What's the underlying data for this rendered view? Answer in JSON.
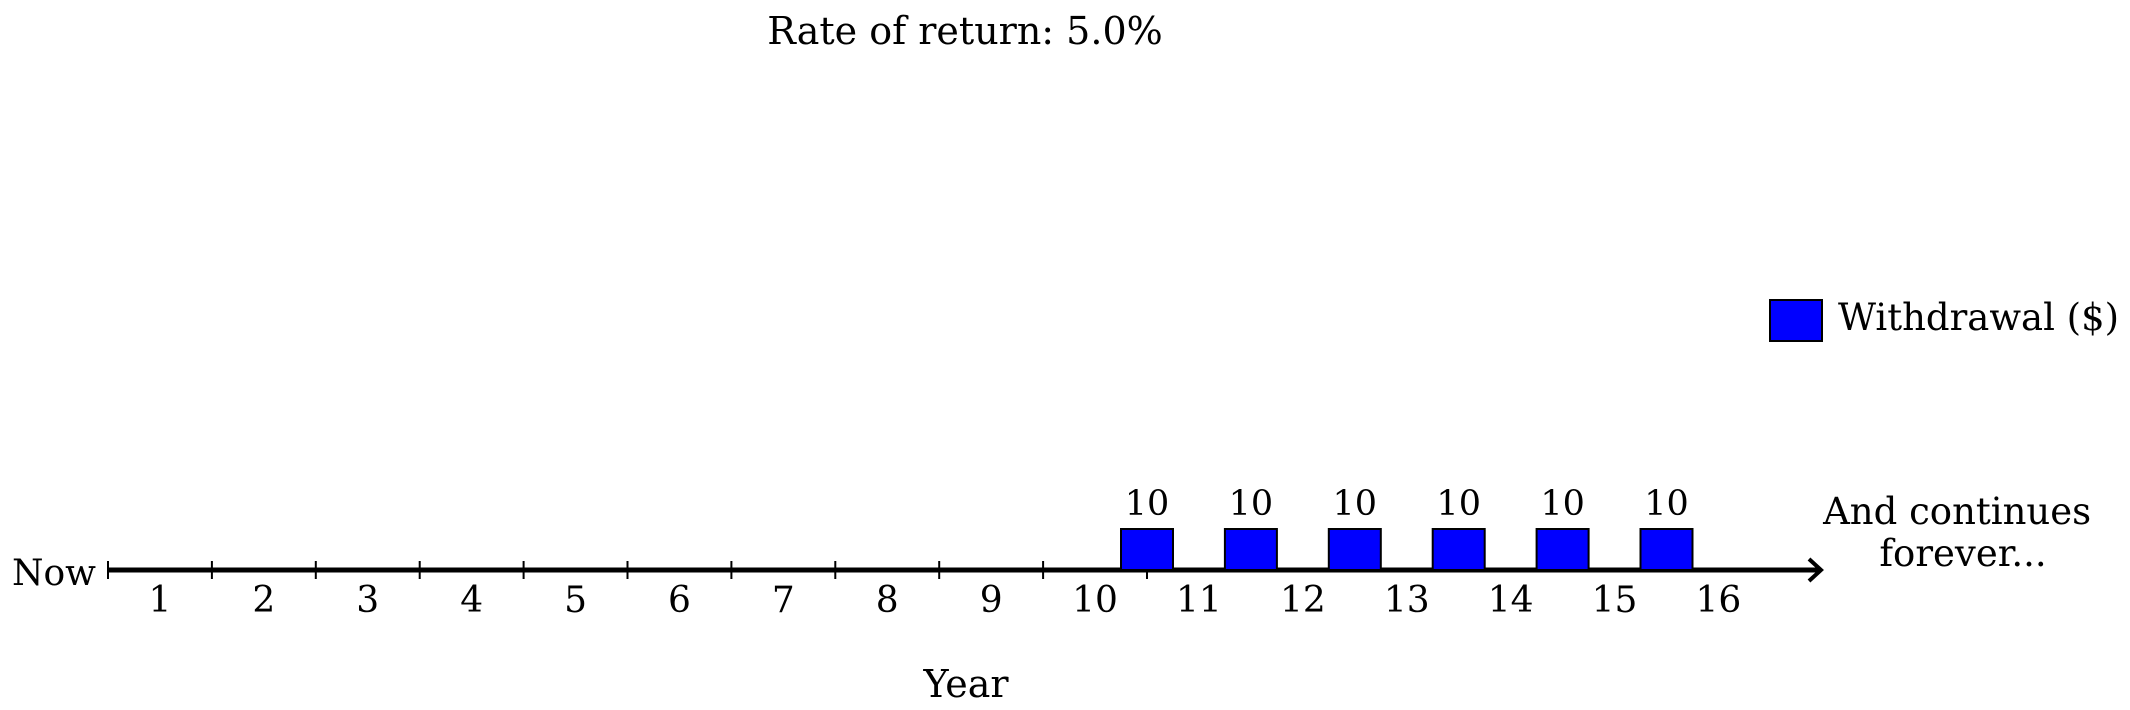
{
  "chart_data": {
    "type": "bar",
    "title": "Rate of return: 5.0%",
    "xlabel": "Year",
    "start_label": "Now",
    "end_note_lines": [
      "And continues",
      "forever..."
    ],
    "year_labels": [
      "1",
      "2",
      "3",
      "4",
      "5",
      "6",
      "7",
      "8",
      "9",
      "10",
      "11",
      "12",
      "13",
      "14",
      "15",
      "16"
    ],
    "legend": {
      "label": "Withdrawal ($)",
      "color": "#0000ff",
      "position": "right"
    },
    "series": [
      {
        "name": "Withdrawal ($)",
        "color": "#0000ff",
        "points": [
          {
            "year": 11,
            "value": 10,
            "label": "10"
          },
          {
            "year": 12,
            "value": 10,
            "label": "10"
          },
          {
            "year": 13,
            "value": 10,
            "label": "10"
          },
          {
            "year": 14,
            "value": 10,
            "label": "10"
          },
          {
            "year": 15,
            "value": 10,
            "label": "10"
          },
          {
            "year": 16,
            "value": 10,
            "label": "10"
          }
        ]
      }
    ]
  }
}
